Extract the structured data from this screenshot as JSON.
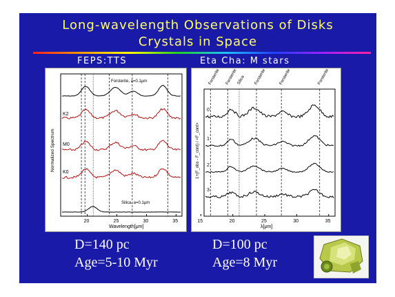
{
  "slide": {
    "title_line1": "Long-wavelength Observations of Disks",
    "title_line2": "Crystals in Space",
    "left_heading": "FEPS:TTS",
    "right_heading": "Eta Cha: M stars",
    "left_distance": "D=140 pc",
    "left_age": "Age=5-10 Myr",
    "right_distance": "D=100 pc",
    "right_age": "Age=8 Myr",
    "photo_icon": "green-crystal-icon"
  },
  "chart_data": [
    {
      "type": "line",
      "xlabel": "Wavelength[μm]",
      "ylabel": "Normalized Spectrum",
      "xlim": [
        15.5,
        36
      ],
      "x_ticks": [
        "20",
        "25",
        "30",
        "35"
      ],
      "series": [
        {
          "name": "Forsterite, a=0.1μm"
        },
        {
          "name": "K2"
        },
        {
          "name": "M0"
        },
        {
          "name": "K0"
        },
        {
          "name": "Silica, a=0.1μm"
        }
      ],
      "top_label": "Forsterite, a=0.1μm",
      "bottom_label": "Silica, a=0.1μm",
      "colors": {
        "model": "#000000",
        "observed": "#b01010"
      }
    },
    {
      "type": "line",
      "xlabel": "λ[μm]",
      "ylabel": "1+(F_obs - F_cont) / <F_cont>",
      "xlim": [
        15.5,
        36
      ],
      "x_ticks": [
        "15",
        "20",
        "25",
        "30",
        "35"
      ],
      "series": [
        {
          "name": "0"
        },
        {
          "name": "1"
        },
        {
          "name": "2"
        },
        {
          "name": "3"
        }
      ],
      "feature_labels": [
        "Forsterite",
        "Forsterite",
        "Silica",
        "Forsterite",
        "Forsterite",
        "Forsterite"
      ],
      "colors": {
        "observed": "#000000"
      }
    }
  ]
}
